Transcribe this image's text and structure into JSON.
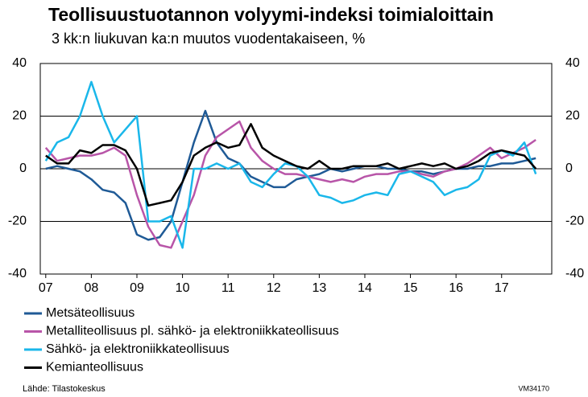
{
  "chart_data": {
    "type": "line",
    "title": "Teollisuustuotannon volyymi-indeksi toimialoittain",
    "subtitle": "3 kk:n liukuvan ka:n muutos vuodentakaiseen, %",
    "source": "Lähde: Tilastokeskus",
    "code": "VM34170",
    "x": [
      7.0,
      7.25,
      7.5,
      7.75,
      8.0,
      8.25,
      8.5,
      8.75,
      9.0,
      9.25,
      9.5,
      9.75,
      10.0,
      10.25,
      10.5,
      10.75,
      11.0,
      11.25,
      11.5,
      11.75,
      12.0,
      12.25,
      12.5,
      12.75,
      13.0,
      13.25,
      13.5,
      13.75,
      14.0,
      14.25,
      14.5,
      14.75,
      15.0,
      15.25,
      15.5,
      15.75,
      16.0,
      16.25,
      16.5,
      16.75,
      17.0,
      17.25,
      17.5,
      17.75
    ],
    "series": [
      {
        "name": "Metsäteollisuus",
        "color": "#1f5a96",
        "values": [
          0,
          1,
          0,
          -1,
          -4,
          -8,
          -9,
          -13,
          -25,
          -27,
          -26,
          -20,
          -5,
          10,
          22,
          10,
          4,
          2,
          -3,
          -5,
          -7,
          -7,
          -4,
          -3,
          -2,
          0,
          -1,
          0,
          1,
          1,
          0,
          0,
          -1,
          -1,
          -2,
          -1,
          0,
          0,
          1,
          1,
          2,
          2,
          3,
          4
        ]
      },
      {
        "name": "Metalliteollisuus pl. sähkö- ja elektroniikkateollisuus",
        "color": "#b855a8",
        "values": [
          8,
          3,
          4,
          5,
          5,
          6,
          8,
          5,
          -10,
          -22,
          -29,
          -30,
          -20,
          -10,
          5,
          12,
          15,
          18,
          8,
          3,
          0,
          -2,
          -2,
          -3,
          -4,
          -5,
          -4,
          -5,
          -3,
          -2,
          -2,
          -1,
          -1,
          -2,
          -3,
          -1,
          0,
          2,
          5,
          8,
          4,
          6,
          8,
          11
        ]
      },
      {
        "name": "Sähkö- ja elektroniikkateollisuus",
        "color": "#1ab7ea",
        "values": [
          3,
          10,
          12,
          20,
          33,
          20,
          10,
          15,
          20,
          -20,
          -20,
          -18,
          -30,
          0,
          0,
          2,
          0,
          2,
          -5,
          -7,
          -2,
          2,
          1,
          -3,
          -10,
          -11,
          -13,
          -12,
          -10,
          -9,
          -10,
          -2,
          -1,
          -3,
          -5,
          -10,
          -8,
          -7,
          -4,
          5,
          7,
          5,
          10,
          -2
        ]
      },
      {
        "name": "Kemianteollisuus",
        "color": "#000000",
        "values": [
          5,
          2,
          2,
          7,
          6,
          9,
          9,
          7,
          0,
          -14,
          -13,
          -12,
          -5,
          5,
          8,
          10,
          8,
          9,
          17,
          8,
          5,
          3,
          1,
          0,
          3,
          0,
          0,
          1,
          1,
          1,
          2,
          0,
          1,
          2,
          1,
          2,
          0,
          1,
          3,
          6,
          7,
          6,
          5,
          0
        ]
      }
    ],
    "xlim": [
      6.88,
      18.1
    ],
    "xticks": [
      {
        "value": 7,
        "label": "07"
      },
      {
        "value": 8,
        "label": "08"
      },
      {
        "value": 9,
        "label": "09"
      },
      10,
      11,
      12,
      13,
      14,
      15,
      16,
      17
    ],
    "ylim": [
      -40,
      40
    ],
    "yticks": [
      -40,
      -20,
      0,
      20,
      40
    ],
    "y2lim": [
      -40,
      40
    ],
    "y2ticks": [
      -40,
      -20,
      0,
      20,
      40
    ],
    "grid": true
  }
}
